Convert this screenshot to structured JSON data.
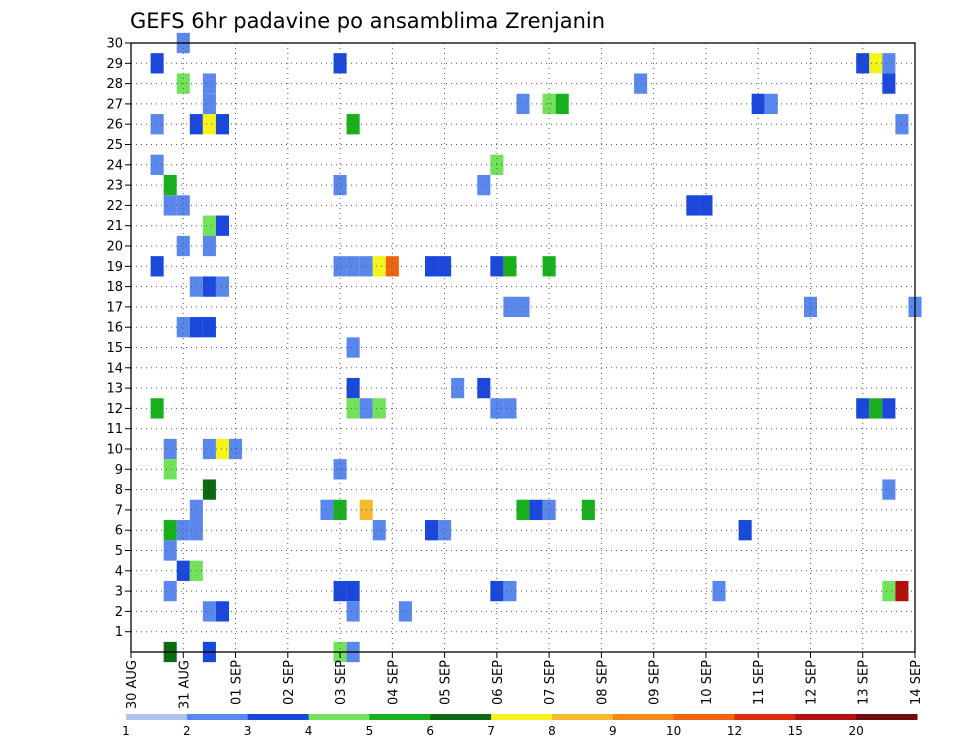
{
  "chart_data": {
    "type": "heatmap",
    "title": "GEFS 6hr padavine po ansamblima Zrenjanin",
    "x_tick_labels": [
      "30 AUG",
      "31 AUG",
      "01 SEP",
      "02 SEP",
      "03 SEP",
      "04 SEP",
      "05 SEP",
      "06 SEP",
      "07 SEP",
      "08 SEP",
      "09 SEP",
      "10 SEP",
      "11 SEP",
      "12 SEP",
      "13 SEP",
      "14 SEP"
    ],
    "y_tick_labels": [
      "1",
      "2",
      "3",
      "4",
      "5",
      "6",
      "7",
      "8",
      "9",
      "10",
      "11",
      "12",
      "13",
      "14",
      "15",
      "16",
      "17",
      "18",
      "19",
      "20",
      "21",
      "22",
      "23",
      "24",
      "25",
      "26",
      "27",
      "28",
      "29",
      "30"
    ],
    "x_unit": "6-hour steps from 30 AUG 00Z",
    "x_range": [
      0,
      60
    ],
    "y_range": [
      0,
      30
    ],
    "grid": true,
    "legend_position": "bottom",
    "legend": {
      "labels": [
        "1",
        "2",
        "3",
        "4",
        "5",
        "6",
        "7",
        "8",
        "9",
        "10",
        "12",
        "15",
        "20"
      ],
      "colors": [
        "#b0c4f4",
        "#5a87ec",
        "#1a47dc",
        "#72e25a",
        "#19b01e",
        "#0e6a12",
        "#f4f41c",
        "#f6ba2c",
        "#f48a1a",
        "#f06410",
        "#de2a10",
        "#b01010",
        "#6e0e0e"
      ]
    },
    "cells": [
      [
        4,
        30,
        1
      ],
      [
        2,
        29,
        2
      ],
      [
        16,
        29,
        2
      ],
      [
        56,
        29,
        2
      ],
      [
        57,
        29,
        6
      ],
      [
        58,
        29,
        1
      ],
      [
        4,
        28,
        3
      ],
      [
        6,
        28,
        1
      ],
      [
        39,
        28,
        1
      ],
      [
        58,
        28,
        2
      ],
      [
        6,
        27,
        1
      ],
      [
        30,
        27,
        1
      ],
      [
        32,
        27,
        3
      ],
      [
        33,
        27,
        4
      ],
      [
        48,
        27,
        2
      ],
      [
        49,
        27,
        1
      ],
      [
        2,
        26,
        1
      ],
      [
        5,
        26,
        2
      ],
      [
        6,
        26,
        6
      ],
      [
        7,
        26,
        2
      ],
      [
        17,
        26,
        4
      ],
      [
        59,
        26,
        1
      ],
      [
        2,
        24,
        1
      ],
      [
        28,
        24,
        3
      ],
      [
        3,
        23,
        4
      ],
      [
        16,
        23,
        1
      ],
      [
        27,
        23,
        1
      ],
      [
        3,
        22,
        1
      ],
      [
        4,
        22,
        1
      ],
      [
        43,
        22,
        2
      ],
      [
        44,
        22,
        2
      ],
      [
        6,
        21,
        3
      ],
      [
        7,
        21,
        2
      ],
      [
        4,
        20,
        1
      ],
      [
        6,
        20,
        1
      ],
      [
        17,
        19,
        1
      ],
      [
        18,
        19,
        1
      ],
      [
        19,
        19,
        6
      ],
      [
        20,
        19,
        9
      ],
      [
        23,
        19,
        2
      ],
      [
        24,
        19,
        2
      ],
      [
        28,
        19,
        2
      ],
      [
        29,
        19,
        4
      ],
      [
        32,
        19,
        4
      ],
      [
        2,
        19,
        2
      ],
      [
        16,
        19,
        1
      ],
      [
        5,
        18,
        1
      ],
      [
        6,
        18,
        2
      ],
      [
        7,
        18,
        1
      ],
      [
        29,
        17,
        1
      ],
      [
        30,
        17,
        1
      ],
      [
        52,
        17,
        1
      ],
      [
        60,
        17,
        1
      ],
      [
        4,
        16,
        1
      ],
      [
        5,
        16,
        2
      ],
      [
        6,
        16,
        2
      ],
      [
        17,
        15,
        1
      ],
      [
        17,
        13,
        2
      ],
      [
        25,
        13,
        1
      ],
      [
        27,
        13,
        2
      ],
      [
        56,
        12,
        2
      ],
      [
        57,
        12,
        4
      ],
      [
        58,
        12,
        2
      ],
      [
        2,
        12,
        4
      ],
      [
        17,
        12,
        3
      ],
      [
        18,
        12,
        1
      ],
      [
        19,
        12,
        3
      ],
      [
        28,
        12,
        1
      ],
      [
        29,
        12,
        1
      ],
      [
        3,
        10,
        1
      ],
      [
        6,
        10,
        1
      ],
      [
        7,
        10,
        6
      ],
      [
        8,
        10,
        1
      ],
      [
        3,
        9,
        3
      ],
      [
        16,
        9,
        1
      ],
      [
        6,
        8,
        5
      ],
      [
        58,
        8,
        1
      ],
      [
        5,
        7,
        1
      ],
      [
        15,
        7,
        1
      ],
      [
        16,
        7,
        4
      ],
      [
        18,
        7,
        7
      ],
      [
        30,
        7,
        4
      ],
      [
        31,
        7,
        2
      ],
      [
        32,
        7,
        1
      ],
      [
        35,
        7,
        4
      ],
      [
        3,
        6,
        4
      ],
      [
        4,
        6,
        1
      ],
      [
        5,
        6,
        1
      ],
      [
        19,
        6,
        1
      ],
      [
        23,
        6,
        2
      ],
      [
        24,
        6,
        1
      ],
      [
        47,
        6,
        2
      ],
      [
        3,
        5,
        1
      ],
      [
        4,
        4,
        2
      ],
      [
        5,
        4,
        3
      ],
      [
        3,
        3,
        1
      ],
      [
        16,
        3,
        2
      ],
      [
        17,
        3,
        2
      ],
      [
        28,
        3,
        2
      ],
      [
        29,
        3,
        1
      ],
      [
        45,
        3,
        1
      ],
      [
        58,
        3,
        3
      ],
      [
        59,
        3,
        11
      ],
      [
        6,
        2,
        1
      ],
      [
        7,
        2,
        2
      ],
      [
        17,
        2,
        1
      ],
      [
        21,
        2,
        1
      ],
      [
        3,
        0,
        5
      ],
      [
        6,
        0,
        2
      ],
      [
        16,
        0,
        3
      ],
      [
        17,
        0,
        1
      ]
    ]
  }
}
